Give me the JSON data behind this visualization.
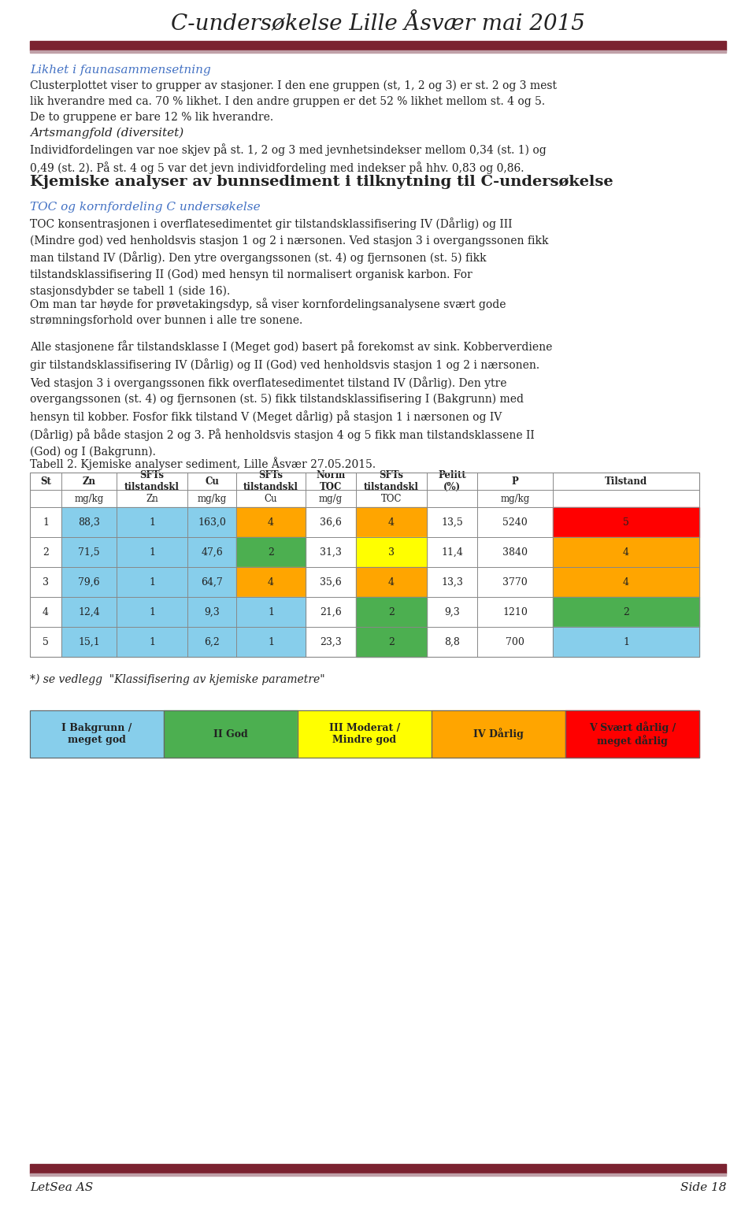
{
  "title": "C-undersøkelse Lille Åsvær mai 2015",
  "header_bar_color": "#7B2230",
  "header_bar_color2": "#C0A0A8",
  "bg_color": "#FFFFFF",
  "footer_left": "LetSea AS",
  "footer_right": "Side 18",
  "section1_heading": "Likhet i faunasammensetning",
  "section1_text": "Clusterplottet viser to grupper av stasjoner. I den ene gruppen (st, 1, 2 og 3) er st. 2 og 3 mest\nlik hverandre med ca. 70 % likhet. I den andre gruppen er det 52 % likhet mellom st. 4 og 5.\nDe to gruppene er bare 12 % lik hverandre.",
  "section2_heading": "Artsmangfold (diversitet)",
  "section2_text": "Individfordelingen var noe skjev på st. 1, 2 og 3 med jevnhetsindekser mellom 0,34 (st. 1) og\n0,49 (st. 2). På st. 4 og 5 var det jevn individfordeling med indekser på hhv. 0,83 og 0,86.",
  "section3_heading": "Kjemiske analyser av bunnsediment i tilknytning til C-undersøkelse",
  "section4_heading": "TOC og kornfordeling C undersøkelse",
  "section4_text": "TOC konsentrasjonen i overflatesedimentet gir tilstandsklassifisering IV (Dårlig) og III\n(Mindre god) ved henholdsvis stasjon 1 og 2 i nærsonen. Ved stasjon 3 i overgangssonen fikk\nman tilstand IV (Dårlig). Den ytre overgangssonen (st. 4) og fjernsonen (st. 5) fikk\ntilstandsklassifisering II (God) med hensyn til normalisert organisk karbon. For\nstasjonsdybder se tabell 1 (side 16).",
  "section5_text": "Om man tar høyde for prøvetakingsdyp, så viser kornfordelingsanalysene svært gode\nstrømningsforhold over bunnen i alle tre sonene.",
  "section6_text": "Alle stasjonene får tilstandsklasse I (Meget god) basert på forekomst av sink. Kobberverdiene\ngir tilstandsklassifisering IV (Dårlig) og II (God) ved henholdsvis stasjon 1 og 2 i nærsonen.\nVed stasjon 3 i overgangssonen fikk overflatesedimentet tilstand IV (Dårlig). Den ytre\novergangssonen (st. 4) og fjernsonen (st. 5) fikk tilstandsklassifisering I (Bakgrunn) med\nhensyn til kobber. Fosfor fikk tilstand V (Meget dårlig) på stasjon 1 i nærsonen og IV\n(Dårlig) på både stasjon 2 og 3. På henholdsvis stasjon 4 og 5 fikk man tilstandsklassene II\n(God) og I (Bakgrunn).",
  "table_caption": "Tabell 2. Kjemiske analyser sediment, Lille Åsvær 27.05.2015.",
  "table_h1": [
    "St",
    "Zn",
    "SFTs\ntilstandskl",
    "Cu",
    "SFTs\ntilstandskl",
    "Norm\nTOC",
    "SFTs\ntilstandskl",
    "Pelitt\n(%)",
    "P",
    "Tilstand"
  ],
  "table_h2": [
    "",
    "mg/kg",
    "Zn",
    "mg/kg",
    "Cu",
    "mg/g",
    "TOC",
    "",
    "mg/kg",
    ""
  ],
  "table_data": [
    [
      1,
      "88,3",
      1,
      "163,0",
      4,
      "36,6",
      4,
      "13,5",
      5240,
      5
    ],
    [
      2,
      "71,5",
      1,
      "47,6",
      2,
      "31,3",
      3,
      "11,4",
      3840,
      4
    ],
    [
      3,
      "79,6",
      1,
      "64,7",
      4,
      "35,6",
      4,
      "13,3",
      3770,
      4
    ],
    [
      4,
      "12,4",
      1,
      "9,3",
      1,
      "21,6",
      2,
      "9,3",
      1210,
      2
    ],
    [
      5,
      "15,1",
      1,
      "6,2",
      1,
      "23,3",
      2,
      "8,8",
      700,
      1
    ]
  ],
  "class_colors": {
    "1": "#87CEEB",
    "2": "#4CAF50",
    "3": "#FFFF00",
    "4": "#FFA500",
    "5": "#FF0000"
  },
  "colored_col_indices": [
    2,
    4,
    6,
    9
  ],
  "zn_val_col": 1,
  "cu_val_col": 3,
  "legend_items": [
    {
      "label": "I Bakgrunn /\nmeget god",
      "color": "#87CEEB"
    },
    {
      "label": "II God",
      "color": "#4CAF50"
    },
    {
      "label": "III Moderat /\nMindre god",
      "color": "#FFFF00"
    },
    {
      "label": "IV Dårlig",
      "color": "#FFA500"
    },
    {
      "label": "V Svært dårlig /\nmeget dårlig",
      "color": "#FF0000"
    }
  ],
  "footnote": "*) se vedlegg  \"Klassifisering av kjemiske parametre\""
}
